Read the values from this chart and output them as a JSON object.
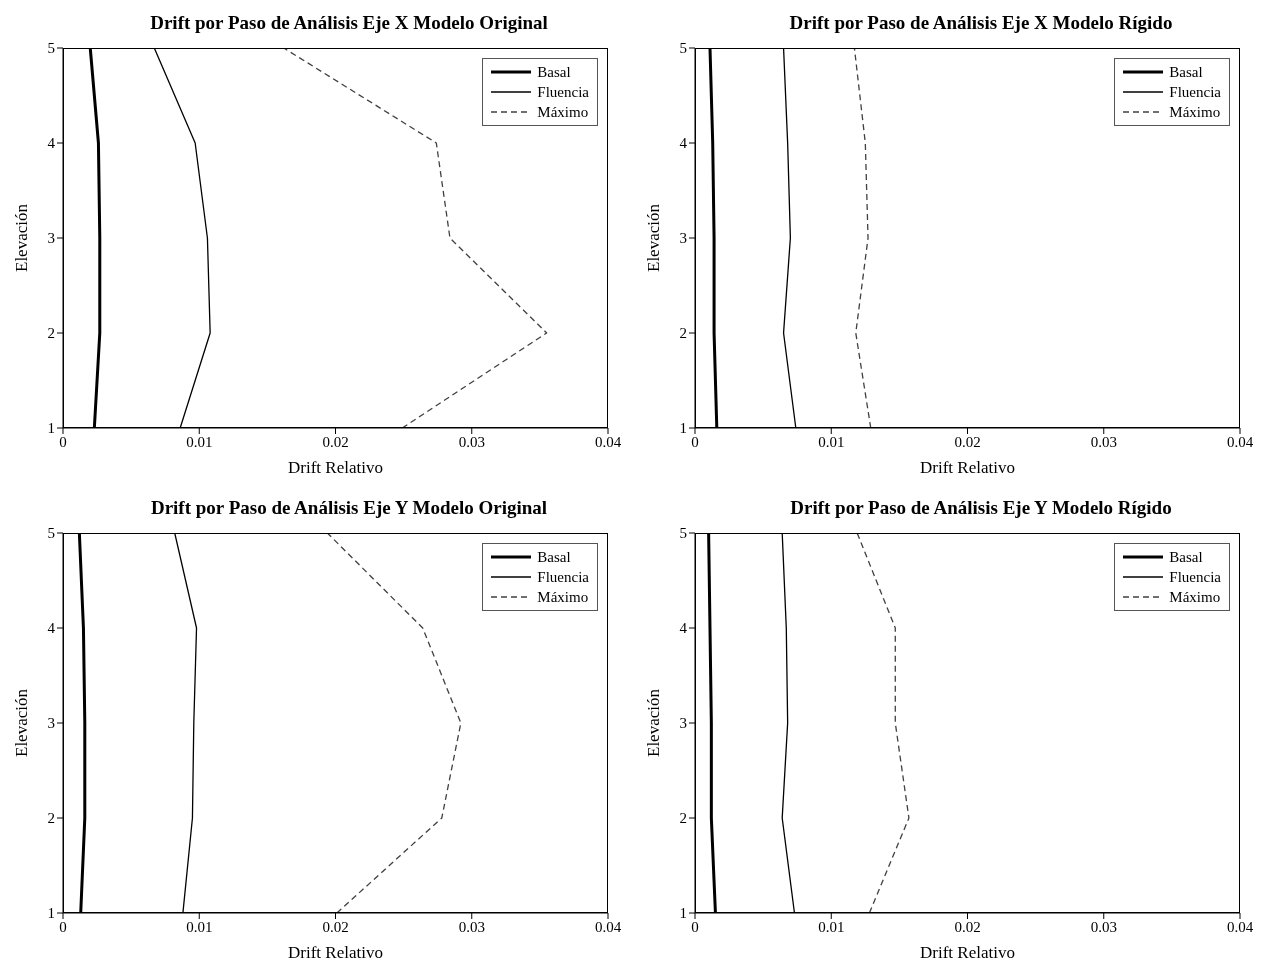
{
  "chart_data": [
    {
      "type": "line",
      "title": "Drift por Paso de Análisis Eje X Modelo Original",
      "xlabel": "Drift Relativo",
      "ylabel": "Elevación",
      "xlim": [
        0,
        0.04
      ],
      "xticks": [
        0,
        0.01,
        0.02,
        0.03,
        0.04
      ],
      "ylim": [
        1,
        5
      ],
      "yticks": [
        1,
        2,
        3,
        4,
        5
      ],
      "grid": false,
      "legend": "top right",
      "marker": "none",
      "series": [
        {
          "name": "Basal",
          "color": "#000000",
          "line_style": "solid",
          "x": [
            0.0023,
            0.0027,
            0.0027,
            0.0026,
            0.002
          ],
          "values": [
            1,
            2,
            3,
            4,
            5
          ]
        },
        {
          "name": "Fluencia",
          "color": "#000000",
          "line_style": "solid",
          "x": [
            0.0086,
            0.0108,
            0.0106,
            0.0097,
            0.0067
          ],
          "values": [
            1,
            2,
            3,
            4,
            5
          ]
        },
        {
          "name": "Máximo",
          "color": "#404040",
          "line_style": "dashed",
          "x": [
            0.0249,
            0.0355,
            0.0284,
            0.0274,
            0.0162
          ],
          "values": [
            1,
            2,
            3,
            4,
            5
          ]
        }
      ]
    },
    {
      "type": "line",
      "title": "Drift por Paso de Análisis Eje X Modelo Rígido",
      "xlabel": "Drift Relativo",
      "ylabel": "Elevación",
      "xlim": [
        0,
        0.04
      ],
      "xticks": [
        0,
        0.01,
        0.02,
        0.03,
        0.04
      ],
      "ylim": [
        1,
        5
      ],
      "yticks": [
        1,
        2,
        3,
        4,
        5
      ],
      "grid": false,
      "legend": "top right",
      "marker": "none",
      "series": [
        {
          "name": "Basal",
          "color": "#000000",
          "line_style": "solid",
          "x": [
            0.0016,
            0.0014,
            0.0014,
            0.0013,
            0.0011
          ],
          "values": [
            1,
            2,
            3,
            4,
            5
          ]
        },
        {
          "name": "Fluencia",
          "color": "#000000",
          "line_style": "solid",
          "x": [
            0.0074,
            0.0065,
            0.007,
            0.0068,
            0.0065
          ],
          "values": [
            1,
            2,
            3,
            4,
            5
          ]
        },
        {
          "name": "Máximo",
          "color": "#404040",
          "line_style": "dashed",
          "x": [
            0.0129,
            0.0118,
            0.0127,
            0.0125,
            0.0117
          ],
          "values": [
            1,
            2,
            3,
            4,
            5
          ]
        }
      ]
    },
    {
      "type": "line",
      "title": "Drift por Paso de Análisis Eje Y Modelo Original",
      "xlabel": "Drift Relativo",
      "ylabel": "Elevación",
      "xlim": [
        0,
        0.04
      ],
      "xticks": [
        0,
        0.01,
        0.02,
        0.03,
        0.04
      ],
      "ylim": [
        1,
        5
      ],
      "yticks": [
        1,
        2,
        3,
        4,
        5
      ],
      "grid": false,
      "legend": "top right",
      "marker": "none",
      "series": [
        {
          "name": "Basal",
          "color": "#000000",
          "line_style": "solid",
          "x": [
            0.0013,
            0.0016,
            0.0016,
            0.0015,
            0.0012
          ],
          "values": [
            1,
            2,
            3,
            4,
            5
          ]
        },
        {
          "name": "Fluencia",
          "color": "#000000",
          "line_style": "solid",
          "x": [
            0.0088,
            0.0095,
            0.0096,
            0.0098,
            0.0082
          ],
          "values": [
            1,
            2,
            3,
            4,
            5
          ]
        },
        {
          "name": "Máximo",
          "color": "#404040",
          "line_style": "dashed",
          "x": [
            0.0201,
            0.0278,
            0.0292,
            0.0264,
            0.0194
          ],
          "values": [
            1,
            2,
            3,
            4,
            5
          ]
        }
      ]
    },
    {
      "type": "line",
      "title": "Drift por Paso de Análisis Eje Y Modelo Rígido",
      "xlabel": "Drift Relativo",
      "ylabel": "Elevación",
      "xlim": [
        0,
        0.04
      ],
      "xticks": [
        0,
        0.01,
        0.02,
        0.03,
        0.04
      ],
      "ylim": [
        1,
        5
      ],
      "yticks": [
        1,
        2,
        3,
        4,
        5
      ],
      "grid": false,
      "legend": "top right",
      "marker": "none",
      "series": [
        {
          "name": "Basal",
          "color": "#000000",
          "line_style": "solid",
          "x": [
            0.0015,
            0.0012,
            0.0012,
            0.0011,
            0.001
          ],
          "values": [
            1,
            2,
            3,
            4,
            5
          ]
        },
        {
          "name": "Fluencia",
          "color": "#000000",
          "line_style": "solid",
          "x": [
            0.0073,
            0.0064,
            0.0068,
            0.0067,
            0.0064
          ],
          "values": [
            1,
            2,
            3,
            4,
            5
          ]
        },
        {
          "name": "Máximo",
          "color": "#404040",
          "line_style": "dashed",
          "x": [
            0.0128,
            0.0157,
            0.0147,
            0.0147,
            0.0119
          ],
          "values": [
            1,
            2,
            3,
            4,
            5
          ]
        }
      ]
    }
  ]
}
